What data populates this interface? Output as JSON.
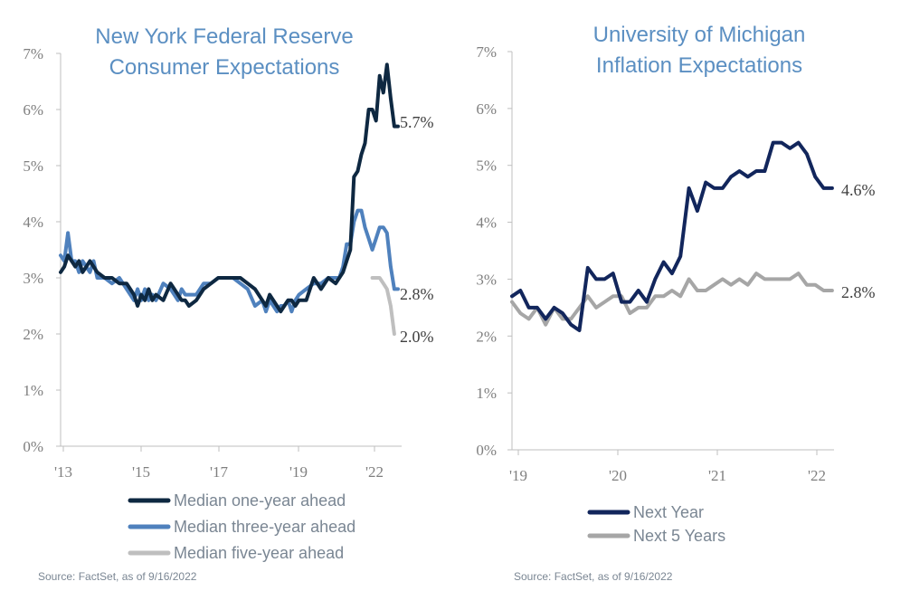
{
  "chart_data": [
    {
      "type": "line",
      "title": [
        "New York Federal Reserve",
        "Consumer Expectations"
      ],
      "ylim": [
        0,
        7
      ],
      "yticks": [
        "0%",
        "1%",
        "2%",
        "3%",
        "4%",
        "5%",
        "6%",
        "7%"
      ],
      "xticks": [
        "'13",
        "'15",
        "'17",
        "'19",
        "'22"
      ],
      "xlim": [
        2013.5,
        2022.7
      ],
      "legend_position": "bottom",
      "series": [
        {
          "name": "Median one-year ahead",
          "color": "#0e2841",
          "end_label": "5.7%",
          "x": [
            2013.5,
            2013.6,
            2013.7,
            2013.8,
            2013.9,
            2014.0,
            2014.1,
            2014.2,
            2014.3,
            2014.4,
            2014.5,
            2014.7,
            2014.9,
            2015.1,
            2015.3,
            2015.5,
            2015.6,
            2015.7,
            2015.8,
            2015.9,
            2016.0,
            2016.1,
            2016.3,
            2016.5,
            2016.6,
            2016.7,
            2016.8,
            2016.9,
            2017.0,
            2017.2,
            2017.4,
            2017.6,
            2017.8,
            2018.0,
            2018.2,
            2018.4,
            2018.6,
            2018.8,
            2019.0,
            2019.1,
            2019.2,
            2019.3,
            2019.4,
            2019.5,
            2019.6,
            2019.7,
            2019.8,
            2019.9,
            2020.0,
            2020.2,
            2020.4,
            2020.6,
            2020.8,
            2021.0,
            2021.1,
            2021.2,
            2021.3,
            2021.4,
            2021.5,
            2021.6,
            2021.7,
            2021.8,
            2021.9,
            2022.0,
            2022.1,
            2022.2,
            2022.3,
            2022.4,
            2022.5,
            2022.6,
            2022.7
          ],
          "values": [
            3.1,
            3.2,
            3.4,
            3.3,
            3.2,
            3.3,
            3.1,
            3.2,
            3.3,
            3.2,
            3.1,
            3.0,
            3.0,
            2.9,
            2.9,
            2.7,
            2.5,
            2.7,
            2.6,
            2.8,
            2.6,
            2.7,
            2.6,
            2.9,
            2.8,
            2.7,
            2.6,
            2.6,
            2.5,
            2.6,
            2.8,
            2.9,
            3.0,
            3.0,
            3.0,
            3.0,
            2.9,
            2.8,
            2.6,
            2.5,
            2.7,
            2.6,
            2.5,
            2.4,
            2.5,
            2.6,
            2.6,
            2.5,
            2.6,
            2.6,
            3.0,
            2.8,
            3.0,
            2.9,
            3.0,
            3.1,
            3.3,
            3.5,
            4.8,
            4.9,
            5.2,
            5.4,
            6.0,
            6.0,
            5.8,
            6.6,
            6.3,
            6.8,
            6.2,
            5.7,
            5.7
          ]
        },
        {
          "name": "Median three-year ahead",
          "color": "#4f81bd",
          "end_label": "2.8%",
          "x": [
            2013.5,
            2013.6,
            2013.7,
            2013.8,
            2013.9,
            2014.0,
            2014.1,
            2014.2,
            2014.3,
            2014.4,
            2014.5,
            2014.7,
            2014.9,
            2015.1,
            2015.3,
            2015.5,
            2015.6,
            2015.7,
            2015.8,
            2015.9,
            2016.0,
            2016.1,
            2016.3,
            2016.5,
            2016.6,
            2016.7,
            2016.8,
            2016.9,
            2017.0,
            2017.2,
            2017.4,
            2017.6,
            2017.8,
            2018.0,
            2018.2,
            2018.4,
            2018.6,
            2018.8,
            2019.0,
            2019.1,
            2019.2,
            2019.3,
            2019.4,
            2019.5,
            2019.6,
            2019.7,
            2019.8,
            2019.9,
            2020.0,
            2020.2,
            2020.4,
            2020.6,
            2020.8,
            2021.0,
            2021.1,
            2021.2,
            2021.3,
            2021.4,
            2021.5,
            2021.6,
            2021.7,
            2021.8,
            2021.9,
            2022.0,
            2022.1,
            2022.2,
            2022.3,
            2022.4,
            2022.5,
            2022.6,
            2022.7
          ],
          "values": [
            3.4,
            3.3,
            3.8,
            3.3,
            3.3,
            3.1,
            3.3,
            3.2,
            3.1,
            3.3,
            3.0,
            3.0,
            2.9,
            3.0,
            2.8,
            2.6,
            2.8,
            2.6,
            2.8,
            2.6,
            2.7,
            2.6,
            2.9,
            2.8,
            2.7,
            2.6,
            2.8,
            2.7,
            2.7,
            2.7,
            2.9,
            2.9,
            3.0,
            3.0,
            3.0,
            2.9,
            2.8,
            2.5,
            2.6,
            2.4,
            2.6,
            2.5,
            2.4,
            2.5,
            2.5,
            2.6,
            2.4,
            2.6,
            2.7,
            2.8,
            2.9,
            2.9,
            3.0,
            3.0,
            3.0,
            3.2,
            3.6,
            3.6,
            4.0,
            4.2,
            4.2,
            3.9,
            3.7,
            3.5,
            3.7,
            3.9,
            3.9,
            3.8,
            3.2,
            2.8,
            2.8
          ]
        },
        {
          "name": "Median five-year ahead",
          "color": "#bfbfbf",
          "end_label": "2.0%",
          "x": [
            2022.0,
            2022.1,
            2022.2,
            2022.3,
            2022.4,
            2022.5,
            2022.6
          ],
          "values": [
            3.0,
            3.0,
            3.0,
            2.9,
            2.8,
            2.5,
            2.0
          ]
        }
      ]
    },
    {
      "type": "line",
      "title": [
        "University of Michigan",
        "Inflation Expectations"
      ],
      "ylim": [
        0,
        7
      ],
      "yticks": [
        "0%",
        "1%",
        "2%",
        "3%",
        "4%",
        "5%",
        "6%",
        "7%"
      ],
      "xticks": [
        "'19",
        "'20",
        "'21",
        "'22"
      ],
      "xlim": [
        2019.0,
        2022.15
      ],
      "legend_position": "bottom",
      "series": [
        {
          "name": "Next Year",
          "color": "#12265c",
          "end_label": "4.6%",
          "x": [
            2019.0,
            2019.0833,
            2019.1667,
            2019.25,
            2019.3333,
            2019.4167,
            2019.5,
            2019.5833,
            2019.6667,
            2019.75,
            2019.8333,
            2019.9167,
            2020.0,
            2020.0833,
            2020.1667,
            2020.25,
            2020.3333,
            2020.4167,
            2020.5,
            2020.5833,
            2020.6667,
            2020.75,
            2020.8333,
            2020.9167,
            2021.0,
            2021.0833,
            2021.1667,
            2021.25,
            2021.3333,
            2021.4167,
            2021.5,
            2021.5833,
            2021.6667,
            2021.75,
            2021.8333,
            2021.9167,
            2022.0,
            2022.0833,
            2022.1667
          ],
          "values": [
            2.7,
            2.8,
            2.5,
            2.5,
            2.3,
            2.5,
            2.4,
            2.2,
            2.1,
            3.2,
            3.0,
            3.0,
            3.1,
            2.6,
            2.6,
            2.8,
            2.6,
            3.0,
            3.3,
            3.1,
            3.4,
            4.6,
            4.2,
            4.7,
            4.6,
            4.6,
            4.8,
            4.9,
            4.8,
            4.9,
            4.9,
            5.4,
            5.4,
            5.3,
            5.4,
            5.2,
            4.8,
            4.6,
            4.6
          ]
        },
        {
          "name": "Next 5 Years",
          "color": "#a6a6a6",
          "end_label": "2.8%",
          "x": [
            2019.0,
            2019.0833,
            2019.1667,
            2019.25,
            2019.3333,
            2019.4167,
            2019.5,
            2019.5833,
            2019.6667,
            2019.75,
            2019.8333,
            2019.9167,
            2020.0,
            2020.0833,
            2020.1667,
            2020.25,
            2020.3333,
            2020.4167,
            2020.5,
            2020.5833,
            2020.6667,
            2020.75,
            2020.8333,
            2020.9167,
            2021.0,
            2021.0833,
            2021.1667,
            2021.25,
            2021.3333,
            2021.4167,
            2021.5,
            2021.5833,
            2021.6667,
            2021.75,
            2021.8333,
            2021.9167,
            2022.0,
            2022.0833,
            2022.1667
          ],
          "values": [
            2.6,
            2.4,
            2.3,
            2.5,
            2.2,
            2.5,
            2.3,
            2.3,
            2.5,
            2.7,
            2.5,
            2.6,
            2.7,
            2.7,
            2.4,
            2.5,
            2.5,
            2.7,
            2.7,
            2.8,
            2.7,
            3.0,
            2.8,
            2.8,
            2.9,
            3.0,
            2.9,
            3.0,
            2.9,
            3.1,
            3.0,
            3.0,
            3.0,
            3.0,
            3.1,
            2.9,
            2.9,
            2.8,
            2.8
          ]
        }
      ]
    }
  ],
  "sources": [
    "Source: FactSet, as of 9/16/2022",
    "Source: FactSet, as of 9/16/2022"
  ]
}
